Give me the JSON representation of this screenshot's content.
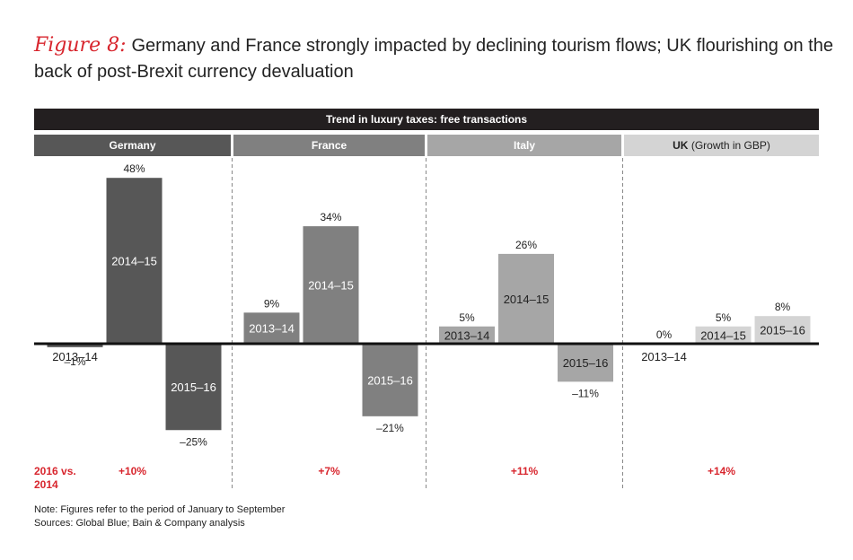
{
  "figure_label": "Figure 8:",
  "title": "Germany and France strongly impacted by declining tourism flows; UK flourishing on the back of post-Brexit currency devaluation",
  "chart_data": {
    "type": "bar",
    "header": "Trend in luxury taxes: free transactions",
    "groups": [
      {
        "name": "Germany",
        "name_suffix": "",
        "header_color": "#575757",
        "bars": [
          {
            "period": "2013–14",
            "value": -1,
            "label": "–1%",
            "color": "#575757"
          },
          {
            "period": "2014–15",
            "value": 48,
            "label": "48%",
            "color": "#575757"
          },
          {
            "period": "2015–16",
            "value": -25,
            "label": "–25%",
            "color": "#575757"
          }
        ],
        "change": "+10%"
      },
      {
        "name": "France",
        "name_suffix": "",
        "header_color": "#808080",
        "bars": [
          {
            "period": "2013–14",
            "value": 9,
            "label": "9%",
            "color": "#808080"
          },
          {
            "period": "2014–15",
            "value": 34,
            "label": "34%",
            "color": "#808080"
          },
          {
            "period": "2015–16",
            "value": -21,
            "label": "–21%",
            "color": "#808080"
          }
        ],
        "change": "+7%"
      },
      {
        "name": "Italy",
        "name_suffix": "",
        "header_color": "#a6a6a6",
        "bars": [
          {
            "period": "2013–14",
            "value": 5,
            "label": "5%",
            "color": "#a6a6a6"
          },
          {
            "period": "2014–15",
            "value": 26,
            "label": "26%",
            "color": "#a6a6a6"
          },
          {
            "period": "2015–16",
            "value": -11,
            "label": "–11%",
            "color": "#a6a6a6"
          }
        ],
        "change": "+11%"
      },
      {
        "name": "UK",
        "name_suffix": " (Growth in GBP)",
        "header_color": "#d4d4d4",
        "bars": [
          {
            "period": "2013–14",
            "value": 0,
            "label": "0%",
            "color": "#d4d4d4"
          },
          {
            "period": "2014–15",
            "value": 5,
            "label": "5%",
            "color": "#d4d4d4"
          },
          {
            "period": "2015–16",
            "value": 8,
            "label": "8%",
            "color": "#d4d4d4"
          }
        ],
        "change": "+14%"
      }
    ],
    "summary_label": "2016 vs. 2014"
  },
  "notes": [
    "Note: Figures refer to the period of January to September",
    "Sources: Global Blue; Bain & Company analysis"
  ],
  "colors": {
    "accent": "#d8262e",
    "header_bg": "#231f20"
  }
}
